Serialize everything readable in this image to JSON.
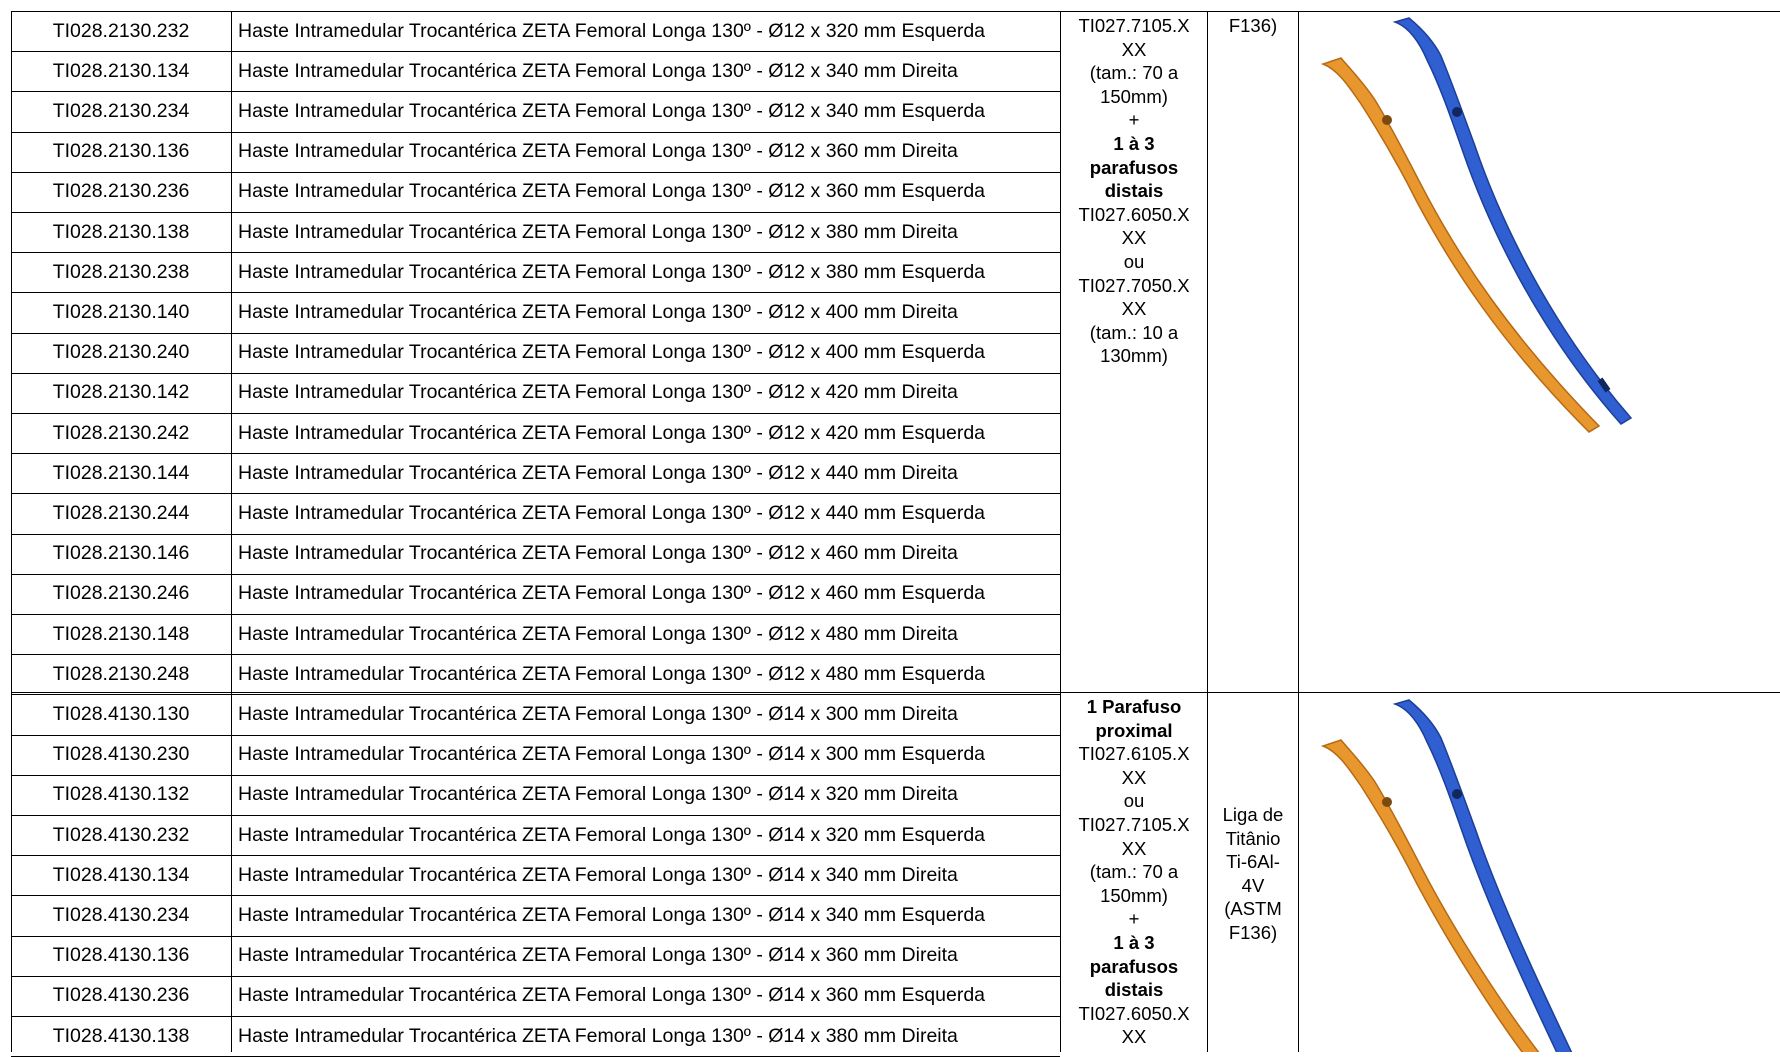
{
  "rows": [
    {
      "code": "TI028.2130.232",
      "desc": "Haste Intramedular Trocantérica ZETA Femoral Longa 130º - Ø12 x 320 mm Esquerda"
    },
    {
      "code": "TI028.2130.134",
      "desc": "Haste Intramedular Trocantérica ZETA Femoral Longa 130º - Ø12 x 340 mm Direita"
    },
    {
      "code": "TI028.2130.234",
      "desc": "Haste Intramedular Trocantérica ZETA Femoral Longa 130º - Ø12 x 340 mm Esquerda"
    },
    {
      "code": "TI028.2130.136",
      "desc": "Haste Intramedular Trocantérica ZETA Femoral Longa 130º - Ø12 x 360 mm Direita"
    },
    {
      "code": "TI028.2130.236",
      "desc": "Haste Intramedular Trocantérica ZETA Femoral Longa 130º - Ø12 x 360 mm Esquerda"
    },
    {
      "code": "TI028.2130.138",
      "desc": "Haste Intramedular Trocantérica ZETA Femoral Longa 130º - Ø12 x 380 mm Direita"
    },
    {
      "code": "TI028.2130.238",
      "desc": "Haste Intramedular Trocantérica ZETA Femoral Longa 130º - Ø12 x 380 mm Esquerda"
    },
    {
      "code": "TI028.2130.140",
      "desc": "Haste Intramedular Trocantérica ZETA Femoral Longa 130º - Ø12 x 400 mm Direita"
    },
    {
      "code": "TI028.2130.240",
      "desc": "Haste Intramedular Trocantérica ZETA Femoral Longa 130º - Ø12 x 400 mm Esquerda"
    },
    {
      "code": "TI028.2130.142",
      "desc": "Haste Intramedular Trocantérica ZETA Femoral Longa 130º - Ø12 x 420 mm Direita"
    },
    {
      "code": "TI028.2130.242",
      "desc": "Haste Intramedular Trocantérica ZETA Femoral Longa 130º - Ø12 x 420 mm Esquerda"
    },
    {
      "code": "TI028.2130.144",
      "desc": "Haste Intramedular Trocantérica ZETA Femoral Longa 130º - Ø12 x 440 mm Direita"
    },
    {
      "code": "TI028.2130.244",
      "desc": "Haste Intramedular Trocantérica ZETA Femoral Longa 130º - Ø12 x 440 mm Esquerda"
    },
    {
      "code": "TI028.2130.146",
      "desc": "Haste Intramedular Trocantérica ZETA Femoral Longa 130º - Ø12 x 460 mm Direita"
    },
    {
      "code": "TI028.2130.246",
      "desc": "Haste Intramedular Trocantérica ZETA Femoral Longa 130º - Ø12 x 460 mm Esquerda"
    },
    {
      "code": "TI028.2130.148",
      "desc": "Haste Intramedular Trocantérica ZETA Femoral Longa 130º - Ø12 x 480 mm Direita"
    },
    {
      "code": "TI028.2130.248",
      "desc": "Haste Intramedular Trocantérica ZETA Femoral Longa 130º - Ø12 x 480 mm Esquerda"
    },
    {
      "code": "TI028.4130.130",
      "desc": "Haste Intramedular Trocantérica ZETA Femoral Longa 130º - Ø14 x 300 mm Direita"
    },
    {
      "code": "TI028.4130.230",
      "desc": "Haste Intramedular Trocantérica ZETA Femoral Longa 130º - Ø14 x 300 mm Esquerda"
    },
    {
      "code": "TI028.4130.132",
      "desc": "Haste Intramedular Trocantérica ZETA Femoral Longa 130º - Ø14 x 320 mm Direita"
    },
    {
      "code": "TI028.4130.232",
      "desc": "Haste Intramedular Trocantérica ZETA Femoral Longa 130º - Ø14 x 320 mm Esquerda"
    },
    {
      "code": "TI028.4130.134",
      "desc": "Haste Intramedular Trocantérica ZETA Femoral Longa 130º - Ø14 x 340 mm Direita"
    },
    {
      "code": "TI028.4130.234",
      "desc": "Haste Intramedular Trocantérica ZETA Femoral Longa 130º - Ø14 x 340 mm Esquerda"
    },
    {
      "code": "TI028.4130.136",
      "desc": "Haste Intramedular Trocantérica ZETA Femoral Longa 130º - Ø14 x 360 mm Direita"
    },
    {
      "code": "TI028.4130.236",
      "desc": "Haste Intramedular Trocantérica ZETA Femoral Longa 130º - Ø14 x 360 mm Esquerda"
    },
    {
      "code": "TI028.4130.138",
      "desc": "Haste Intramedular Trocantérica ZETA Femoral Longa 130º - Ø14 x 380 mm Direita"
    }
  ],
  "group1_screws": [
    "TI027.7105.X",
    "XX",
    "(tam.: 70 a",
    "150mm)",
    "+",
    "1 à 3",
    "parafusos",
    "distais",
    "TI027.6050.X",
    "XX",
    "ou",
    "TI027.7050.X",
    "XX",
    "(tam.: 10 a",
    "130mm)"
  ],
  "group1_material": [
    "F136)"
  ],
  "group2_screws": [
    "1 Parafuso",
    "proximal",
    "TI027.6105.X",
    "XX",
    "ou",
    "TI027.7105.X",
    "XX",
    "(tam.: 70 a",
    "150mm)",
    "+",
    "1 à 3",
    "parafusos",
    "distais",
    "TI027.6050.X",
    "XX"
  ],
  "group2_material": [
    "Liga de",
    "Titânio",
    "Ti-6Al-",
    "4V",
    "(ASTM",
    "F136)"
  ],
  "colors": {
    "orange_nail": "#E8972F",
    "blue_nail": "#2F5FD0"
  }
}
